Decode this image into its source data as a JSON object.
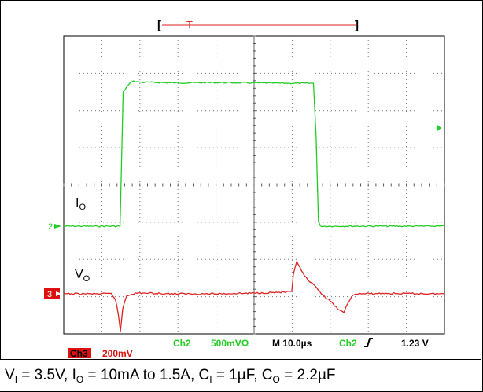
{
  "chart_data": {
    "type": "line",
    "title": "",
    "xlabel": "",
    "ylabel": "",
    "grid": true,
    "grid_divisions": {
      "x": 10,
      "y": 8
    },
    "xlim": [
      0,
      100
    ],
    "x_unit": "µs",
    "series": [
      {
        "name": "IO",
        "label_main": "I",
        "label_sub": "O",
        "channel_marker": "2",
        "color": "#22cc22",
        "scale_per_div": "500mVΩ",
        "points": [
          [
            0,
            0
          ],
          [
            14.8,
            0
          ],
          [
            15.6,
            3.6
          ],
          [
            16.6,
            3.75
          ],
          [
            18,
            3.9
          ],
          [
            20,
            3.87
          ],
          [
            30,
            3.85
          ],
          [
            40,
            3.86
          ],
          [
            50,
            3.85
          ],
          [
            60,
            3.84
          ],
          [
            65.6,
            3.84
          ],
          [
            66.3,
            2.4
          ],
          [
            66.9,
            0.12
          ],
          [
            67.4,
            0
          ],
          [
            80,
            0
          ],
          [
            100,
            0
          ]
        ]
      },
      {
        "name": "VO",
        "label_main": "V",
        "label_sub": "O",
        "channel_marker": "3",
        "color": "#dd2222",
        "scale_per_div": "200mV",
        "points": [
          [
            0,
            0
          ],
          [
            12.5,
            0
          ],
          [
            13.6,
            -0.15
          ],
          [
            14.4,
            -0.6
          ],
          [
            14.9,
            -1.0
          ],
          [
            15.5,
            -0.4
          ],
          [
            16.5,
            -0.05
          ],
          [
            18,
            0
          ],
          [
            20,
            0.02
          ],
          [
            30,
            0
          ],
          [
            40,
            0
          ],
          [
            50,
            0.02
          ],
          [
            59.9,
            0.05
          ],
          [
            60.3,
            0.5
          ],
          [
            61.2,
            0.88
          ],
          [
            62.5,
            0.6
          ],
          [
            64,
            0.38
          ],
          [
            66,
            0.2
          ],
          [
            68,
            -0.02
          ],
          [
            70,
            -0.2
          ],
          [
            72,
            -0.4
          ],
          [
            73.6,
            -0.52
          ],
          [
            74.2,
            -0.35
          ],
          [
            75.5,
            -0.08
          ],
          [
            77,
            0
          ],
          [
            85,
            0.01
          ],
          [
            100,
            0
          ]
        ]
      }
    ],
    "timebase": "M 10.0µs",
    "trigger_source": "Ch2",
    "trigger_level": "1.23 V",
    "trigger_marker": "T",
    "ch3_label": "Ch3",
    "ch3_scale": "200mV",
    "ch2_label": "Ch2",
    "ch2_scale": "500mVΩ"
  },
  "caption": {
    "p1": "V",
    "s1": "I",
    "p2": " = 3.5V, I",
    "s2": "O",
    "p3": " = 10mA to 1.5A, C",
    "s3": "I",
    "p4": " = 1µF, C",
    "s4": "O",
    "p5": " = 2.2µF"
  }
}
